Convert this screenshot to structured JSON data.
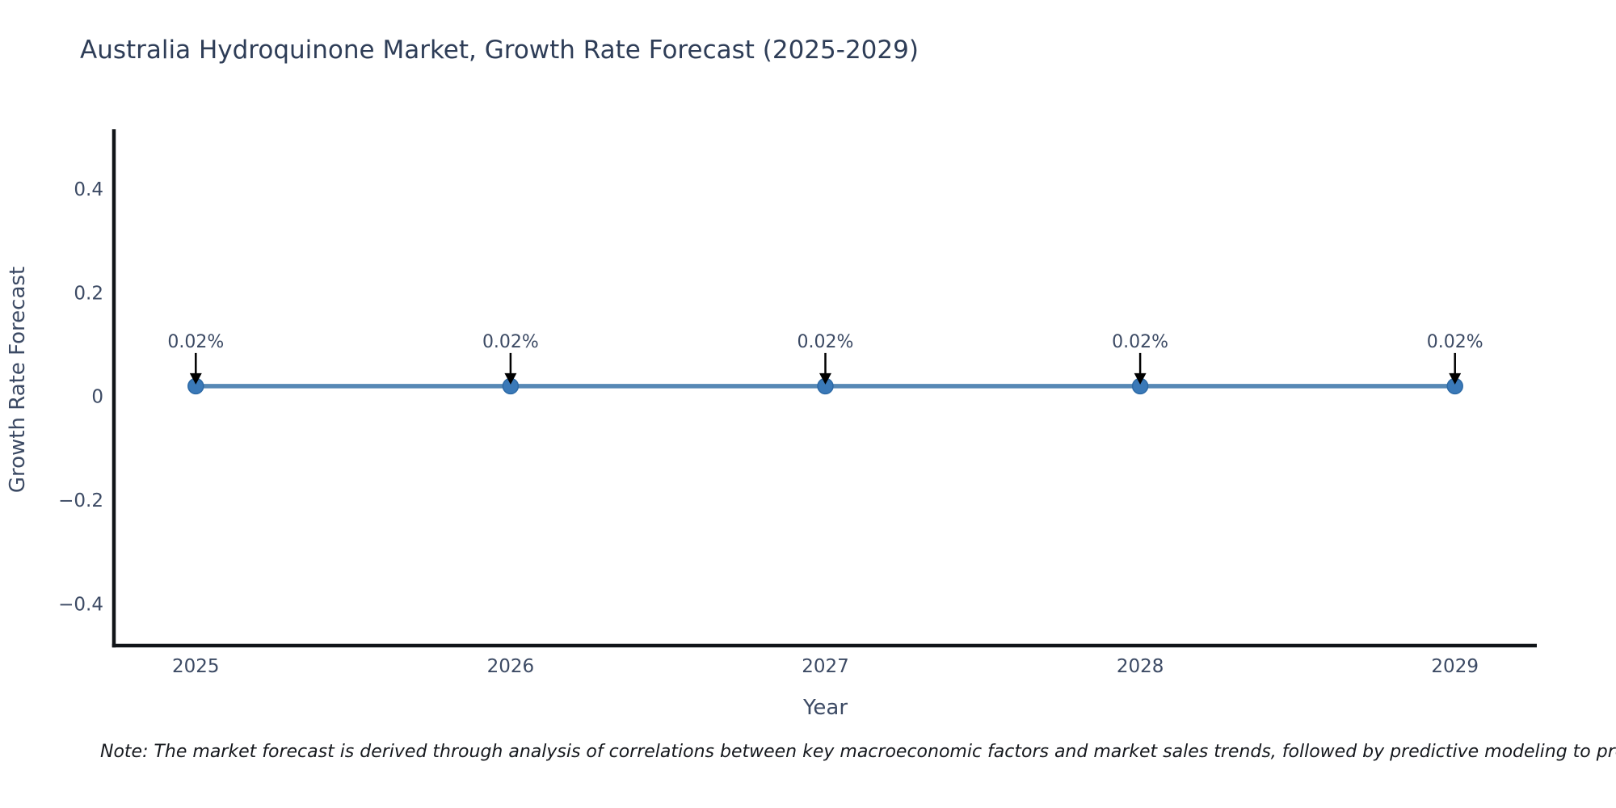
{
  "note": "Note: The market forecast is derived through analysis of correlations between key macroeconomic factors and market sales trends, followed by predictive modeling to project future sal",
  "chart_data": {
    "type": "line",
    "title": "Australia Hydroquinone Market, Growth Rate Forecast (2025-2029)",
    "xlabel": "Year",
    "ylabel": "Growth Rate Forecast",
    "x": [
      2025,
      2026,
      2027,
      2028,
      2029
    ],
    "series": [
      {
        "name": "Growth Rate Forecast",
        "values": [
          0.02,
          0.02,
          0.02,
          0.02,
          0.02
        ]
      }
    ],
    "point_labels": [
      "0.02%",
      "0.02%",
      "0.02%",
      "0.02%",
      "0.02%"
    ],
    "x_ticks": [
      {
        "value": 2025,
        "label": "2025"
      },
      {
        "value": 2026,
        "label": "2026"
      },
      {
        "value": 2027,
        "label": "2027"
      },
      {
        "value": 2028,
        "label": "2028"
      },
      {
        "value": 2029,
        "label": "2029"
      }
    ],
    "y_ticks": [
      {
        "value": 0.4,
        "label": "0.4"
      },
      {
        "value": 0.2,
        "label": "0.2"
      },
      {
        "value": 0.0,
        "label": "0"
      },
      {
        "value": -0.2,
        "label": "−0.2"
      },
      {
        "value": -0.4,
        "label": "−0.4"
      }
    ],
    "xlim": [
      2024.74,
      2029.26
    ],
    "ylim": [
      -0.48,
      0.515
    ],
    "grid": false,
    "legend": false,
    "colors": {
      "line": "#5688b5",
      "marker_fill": "#3a79b8",
      "marker_edge": "#2d6aa6",
      "spine": "#111519",
      "tick_text": "#3c4a64",
      "axis_label_text": "#3c4a64",
      "annotation_text": "#3c4a64",
      "annotation_arrow": "#000000",
      "title_text": "#2e3d57",
      "note_text": "#15181d",
      "background": "#ffffff"
    }
  }
}
